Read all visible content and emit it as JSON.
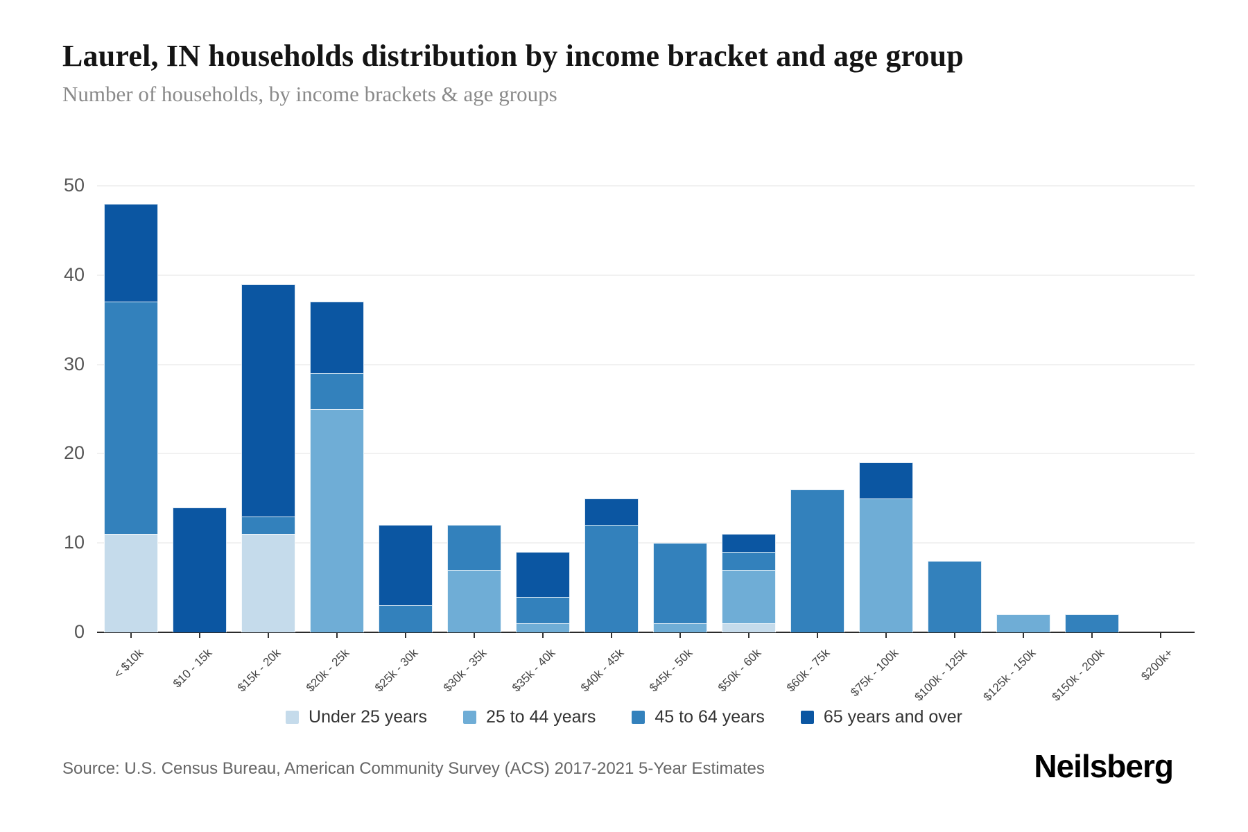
{
  "header": {
    "title": "Laurel, IN households distribution by income bracket and age group",
    "subtitle": "Number of households, by income brackets & age groups"
  },
  "chart_data": {
    "type": "bar",
    "variant": "stacked-vertical",
    "title": "Laurel, IN households distribution by income bracket and age group",
    "xlabel": "",
    "ylabel": "Number of households",
    "ylim": [
      0,
      50
    ],
    "yticks": [
      0,
      10,
      20,
      30,
      40,
      50
    ],
    "grid": "horizontal",
    "legend_position": "bottom",
    "categories": [
      "< $10k",
      "$10 - 15k",
      "$15k - 20k",
      "$20k - 25k",
      "$25k - 30k",
      "$30k - 35k",
      "$35k - 40k",
      "$40k - 45k",
      "$45k - 50k",
      "$50k - 60k",
      "$60k - 75k",
      "$75k - 100k",
      "$100k - 125k",
      "$125k - 150k",
      "$150k - 200k",
      "$200k+"
    ],
    "series": [
      {
        "name": "Under 25 years",
        "color": "#c5dbeb",
        "values": [
          11,
          0,
          11,
          0,
          0,
          0,
          0,
          0,
          0,
          1,
          0,
          0,
          0,
          0,
          0,
          0
        ]
      },
      {
        "name": "25 to 44 years",
        "color": "#6fadd6",
        "values": [
          0,
          0,
          0,
          25,
          0,
          7,
          1,
          0,
          1,
          6,
          0,
          15,
          0,
          2,
          0,
          0
        ]
      },
      {
        "name": "45 to 64 years",
        "color": "#3381bc",
        "values": [
          26,
          0,
          2,
          4,
          3,
          5,
          3,
          12,
          9,
          2,
          16,
          0,
          8,
          0,
          2,
          0
        ]
      },
      {
        "name": "65 years and over",
        "color": "#0b56a2",
        "values": [
          11,
          14,
          26,
          8,
          9,
          0,
          5,
          3,
          0,
          2,
          0,
          4,
          0,
          0,
          0,
          0
        ]
      }
    ],
    "bar_totals": [
      48,
      14,
      39,
      37,
      12,
      12,
      9,
      15,
      10,
      11,
      16,
      19,
      8,
      2,
      2,
      0
    ]
  },
  "footer": {
    "source": "Source: U.S. Census Bureau, American Community Survey (ACS) 2017-2021 5-Year Estimates",
    "brand": "Neilsberg"
  }
}
